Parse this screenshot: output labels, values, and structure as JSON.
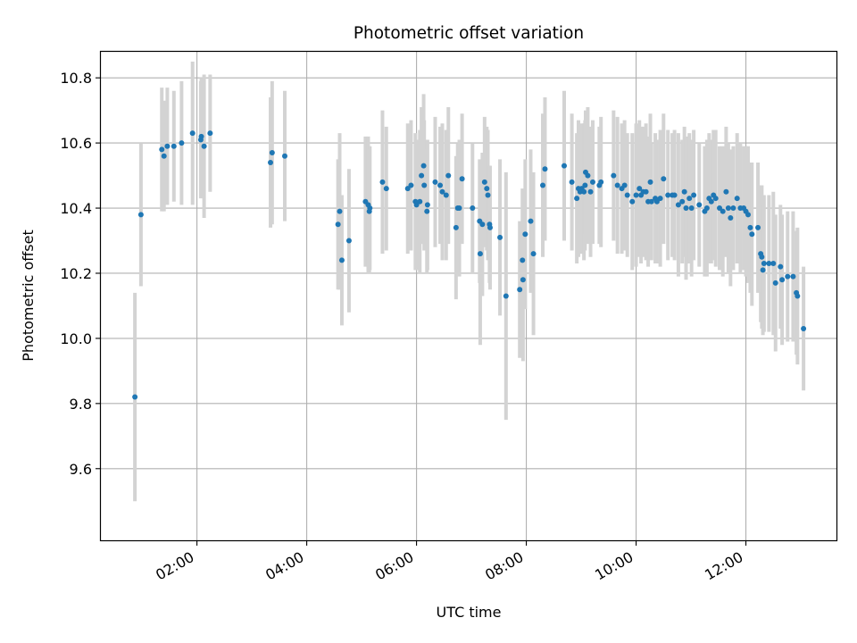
{
  "chart_data": {
    "type": "scatter",
    "title": "Photometric offset variation",
    "xlabel": "UTC time",
    "ylabel": "Photometric offset",
    "grid": true,
    "xlim": [
      0.25,
      13.65
    ],
    "ylim": [
      9.38,
      10.88
    ],
    "x_ticks": [
      {
        "value": 2,
        "label": "02:00"
      },
      {
        "value": 4,
        "label": "04:00"
      },
      {
        "value": 6,
        "label": "06:00"
      },
      {
        "value": 8,
        "label": "08:00"
      },
      {
        "value": 10,
        "label": "10:00"
      },
      {
        "value": 12,
        "label": "12:00"
      }
    ],
    "y_ticks": [
      {
        "value": 9.6,
        "label": "9.6"
      },
      {
        "value": 9.8,
        "label": "9.8"
      },
      {
        "value": 10.0,
        "label": "10.0"
      },
      {
        "value": 10.2,
        "label": "10.2"
      },
      {
        "value": 10.4,
        "label": "10.4"
      },
      {
        "value": 10.6,
        "label": "10.6"
      },
      {
        "value": 10.8,
        "label": "10.8"
      }
    ],
    "colors": {
      "points": "#1f77b4",
      "errorbars": "#d3d3d3",
      "grid": "#b0b0b0"
    },
    "points": [
      {
        "x": 0.87,
        "y": 9.82,
        "err": 0.32
      },
      {
        "x": 0.98,
        "y": 10.38,
        "err": 0.22
      },
      {
        "x": 1.36,
        "y": 10.58,
        "err": 0.19
      },
      {
        "x": 1.4,
        "y": 10.56,
        "err": 0.17
      },
      {
        "x": 1.46,
        "y": 10.59,
        "err": 0.18
      },
      {
        "x": 1.58,
        "y": 10.59,
        "err": 0.17
      },
      {
        "x": 1.72,
        "y": 10.6,
        "err": 0.19
      },
      {
        "x": 1.92,
        "y": 10.63,
        "err": 0.22
      },
      {
        "x": 2.07,
        "y": 10.61,
        "err": 0.18
      },
      {
        "x": 2.08,
        "y": 10.62,
        "err": 0.18
      },
      {
        "x": 2.13,
        "y": 10.59,
        "err": 0.22
      },
      {
        "x": 2.24,
        "y": 10.63,
        "err": 0.18
      },
      {
        "x": 3.34,
        "y": 10.54,
        "err": 0.2
      },
      {
        "x": 3.37,
        "y": 10.57,
        "err": 0.22
      },
      {
        "x": 3.6,
        "y": 10.56,
        "err": 0.2
      },
      {
        "x": 4.57,
        "y": 10.35,
        "err": 0.2
      },
      {
        "x": 4.6,
        "y": 10.39,
        "err": 0.24
      },
      {
        "x": 4.64,
        "y": 10.24,
        "err": 0.2
      },
      {
        "x": 4.77,
        "y": 10.3,
        "err": 0.22
      },
      {
        "x": 5.07,
        "y": 10.42,
        "err": 0.2
      },
      {
        "x": 5.12,
        "y": 10.41,
        "err": 0.21
      },
      {
        "x": 5.15,
        "y": 10.4,
        "err": 0.19
      },
      {
        "x": 5.14,
        "y": 10.39,
        "err": 0.19
      },
      {
        "x": 5.38,
        "y": 10.48,
        "err": 0.22
      },
      {
        "x": 5.45,
        "y": 10.46,
        "err": 0.19
      },
      {
        "x": 5.84,
        "y": 10.46,
        "err": 0.2
      },
      {
        "x": 5.9,
        "y": 10.47,
        "err": 0.2
      },
      {
        "x": 5.98,
        "y": 10.42,
        "err": 0.21
      },
      {
        "x": 6.0,
        "y": 10.41,
        "err": 0.2
      },
      {
        "x": 6.06,
        "y": 10.42,
        "err": 0.22
      },
      {
        "x": 6.09,
        "y": 10.5,
        "err": 0.21
      },
      {
        "x": 6.13,
        "y": 10.53,
        "err": 0.22
      },
      {
        "x": 6.14,
        "y": 10.47,
        "err": 0.2
      },
      {
        "x": 6.2,
        "y": 10.41,
        "err": 0.2
      },
      {
        "x": 6.19,
        "y": 10.39,
        "err": 0.19
      },
      {
        "x": 6.34,
        "y": 10.48,
        "err": 0.2
      },
      {
        "x": 6.43,
        "y": 10.47,
        "err": 0.18
      },
      {
        "x": 6.47,
        "y": 10.45,
        "err": 0.21
      },
      {
        "x": 6.54,
        "y": 10.44,
        "err": 0.2
      },
      {
        "x": 6.58,
        "y": 10.5,
        "err": 0.21
      },
      {
        "x": 6.72,
        "y": 10.34,
        "err": 0.22
      },
      {
        "x": 6.75,
        "y": 10.4,
        "err": 0.2
      },
      {
        "x": 6.78,
        "y": 10.4,
        "err": 0.21
      },
      {
        "x": 6.83,
        "y": 10.49,
        "err": 0.2
      },
      {
        "x": 7.02,
        "y": 10.4,
        "err": 0.2
      },
      {
        "x": 7.15,
        "y": 10.36,
        "err": 0.19
      },
      {
        "x": 7.16,
        "y": 10.26,
        "err": 0.28
      },
      {
        "x": 7.2,
        "y": 10.35,
        "err": 0.22
      },
      {
        "x": 7.24,
        "y": 10.48,
        "err": 0.2
      },
      {
        "x": 7.28,
        "y": 10.46,
        "err": 0.19
      },
      {
        "x": 7.3,
        "y": 10.44,
        "err": 0.2
      },
      {
        "x": 7.33,
        "y": 10.35,
        "err": 0.18
      },
      {
        "x": 7.34,
        "y": 10.34,
        "err": 0.19
      },
      {
        "x": 7.52,
        "y": 10.31,
        "err": 0.24
      },
      {
        "x": 7.63,
        "y": 10.13,
        "err": 0.38
      },
      {
        "x": 7.88,
        "y": 10.15,
        "err": 0.21
      },
      {
        "x": 7.93,
        "y": 10.24,
        "err": 0.22
      },
      {
        "x": 7.94,
        "y": 10.18,
        "err": 0.25
      },
      {
        "x": 7.98,
        "y": 10.32,
        "err": 0.23
      },
      {
        "x": 8.08,
        "y": 10.36,
        "err": 0.22
      },
      {
        "x": 8.13,
        "y": 10.26,
        "err": 0.25
      },
      {
        "x": 8.3,
        "y": 10.47,
        "err": 0.22
      },
      {
        "x": 8.34,
        "y": 10.52,
        "err": 0.22
      },
      {
        "x": 8.69,
        "y": 10.53,
        "err": 0.23
      },
      {
        "x": 8.83,
        "y": 10.48,
        "err": 0.21
      },
      {
        "x": 8.92,
        "y": 10.43,
        "err": 0.2
      },
      {
        "x": 8.95,
        "y": 10.46,
        "err": 0.21
      },
      {
        "x": 8.98,
        "y": 10.45,
        "err": 0.19
      },
      {
        "x": 9.01,
        "y": 10.46,
        "err": 0.2
      },
      {
        "x": 9.05,
        "y": 10.45,
        "err": 0.21
      },
      {
        "x": 9.07,
        "y": 10.47,
        "err": 0.2
      },
      {
        "x": 9.08,
        "y": 10.51,
        "err": 0.19
      },
      {
        "x": 9.12,
        "y": 10.5,
        "err": 0.21
      },
      {
        "x": 9.17,
        "y": 10.45,
        "err": 0.2
      },
      {
        "x": 9.21,
        "y": 10.48,
        "err": 0.19
      },
      {
        "x": 9.33,
        "y": 10.47,
        "err": 0.18
      },
      {
        "x": 9.36,
        "y": 10.48,
        "err": 0.2
      },
      {
        "x": 9.59,
        "y": 10.5,
        "err": 0.2
      },
      {
        "x": 9.66,
        "y": 10.47,
        "err": 0.21
      },
      {
        "x": 9.74,
        "y": 10.46,
        "err": 0.2
      },
      {
        "x": 9.79,
        "y": 10.47,
        "err": 0.2
      },
      {
        "x": 9.84,
        "y": 10.44,
        "err": 0.19
      },
      {
        "x": 9.93,
        "y": 10.42,
        "err": 0.21
      },
      {
        "x": 10.0,
        "y": 10.44,
        "err": 0.22
      },
      {
        "x": 10.06,
        "y": 10.46,
        "err": 0.21
      },
      {
        "x": 10.09,
        "y": 10.44,
        "err": 0.21
      },
      {
        "x": 10.13,
        "y": 10.45,
        "err": 0.2
      },
      {
        "x": 10.18,
        "y": 10.45,
        "err": 0.21
      },
      {
        "x": 10.22,
        "y": 10.42,
        "err": 0.2
      },
      {
        "x": 10.26,
        "y": 10.48,
        "err": 0.21
      },
      {
        "x": 10.28,
        "y": 10.42,
        "err": 0.18
      },
      {
        "x": 10.35,
        "y": 10.43,
        "err": 0.2
      },
      {
        "x": 10.38,
        "y": 10.42,
        "err": 0.19
      },
      {
        "x": 10.44,
        "y": 10.43,
        "err": 0.21
      },
      {
        "x": 10.5,
        "y": 10.49,
        "err": 0.2
      },
      {
        "x": 10.58,
        "y": 10.44,
        "err": 0.2
      },
      {
        "x": 10.66,
        "y": 10.44,
        "err": 0.19
      },
      {
        "x": 10.7,
        "y": 10.44,
        "err": 0.2
      },
      {
        "x": 10.77,
        "y": 10.41,
        "err": 0.22
      },
      {
        "x": 10.84,
        "y": 10.42,
        "err": 0.19
      },
      {
        "x": 10.88,
        "y": 10.45,
        "err": 0.2
      },
      {
        "x": 10.91,
        "y": 10.4,
        "err": 0.22
      },
      {
        "x": 10.97,
        "y": 10.43,
        "err": 0.2
      },
      {
        "x": 11.01,
        "y": 10.4,
        "err": 0.21
      },
      {
        "x": 11.05,
        "y": 10.44,
        "err": 0.2
      },
      {
        "x": 11.15,
        "y": 10.41,
        "err": 0.19
      },
      {
        "x": 11.25,
        "y": 10.39,
        "err": 0.2
      },
      {
        "x": 11.29,
        "y": 10.4,
        "err": 0.21
      },
      {
        "x": 11.33,
        "y": 10.43,
        "err": 0.2
      },
      {
        "x": 11.37,
        "y": 10.42,
        "err": 0.19
      },
      {
        "x": 11.41,
        "y": 10.44,
        "err": 0.2
      },
      {
        "x": 11.45,
        "y": 10.43,
        "err": 0.21
      },
      {
        "x": 11.52,
        "y": 10.4,
        "err": 0.19
      },
      {
        "x": 11.58,
        "y": 10.39,
        "err": 0.2
      },
      {
        "x": 11.64,
        "y": 10.45,
        "err": 0.2
      },
      {
        "x": 11.68,
        "y": 10.4,
        "err": 0.2
      },
      {
        "x": 11.72,
        "y": 10.37,
        "err": 0.21
      },
      {
        "x": 11.77,
        "y": 10.4,
        "err": 0.19
      },
      {
        "x": 11.84,
        "y": 10.43,
        "err": 0.2
      },
      {
        "x": 11.9,
        "y": 10.4,
        "err": 0.2
      },
      {
        "x": 11.96,
        "y": 10.4,
        "err": 0.19
      },
      {
        "x": 12.0,
        "y": 10.39,
        "err": 0.2
      },
      {
        "x": 12.04,
        "y": 10.38,
        "err": 0.21
      },
      {
        "x": 12.08,
        "y": 10.34,
        "err": 0.2
      },
      {
        "x": 12.11,
        "y": 10.32,
        "err": 0.22
      },
      {
        "x": 12.22,
        "y": 10.34,
        "err": 0.2
      },
      {
        "x": 12.27,
        "y": 10.26,
        "err": 0.21
      },
      {
        "x": 12.29,
        "y": 10.25,
        "err": 0.22
      },
      {
        "x": 12.31,
        "y": 10.21,
        "err": 0.2
      },
      {
        "x": 12.33,
        "y": 10.23,
        "err": 0.21
      },
      {
        "x": 12.42,
        "y": 10.23,
        "err": 0.21
      },
      {
        "x": 12.5,
        "y": 10.23,
        "err": 0.22
      },
      {
        "x": 12.54,
        "y": 10.17,
        "err": 0.21
      },
      {
        "x": 12.63,
        "y": 10.22,
        "err": 0.19
      },
      {
        "x": 12.66,
        "y": 10.18,
        "err": 0.2
      },
      {
        "x": 12.76,
        "y": 10.19,
        "err": 0.2
      },
      {
        "x": 12.86,
        "y": 10.19,
        "err": 0.2
      },
      {
        "x": 12.92,
        "y": 10.14,
        "err": 0.19
      },
      {
        "x": 12.94,
        "y": 10.13,
        "err": 0.21
      },
      {
        "x": 13.05,
        "y": 10.03,
        "err": 0.19
      }
    ]
  }
}
